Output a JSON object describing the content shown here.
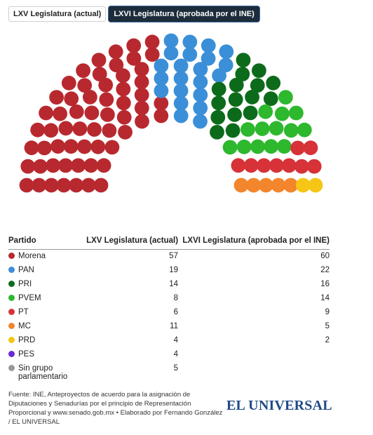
{
  "tabs": [
    {
      "label": "LXV Legislatura (actual)",
      "active": false
    },
    {
      "label": "LXVI Legislatura (aprobada por el INE)",
      "active": true
    }
  ],
  "table": {
    "header_party": "Partido",
    "header_current": "LXV Legislatura (actual)",
    "header_approved": "LXVI Legislatura (aprobada por el INE)"
  },
  "chart_data": {
    "type": "parliament",
    "title": "",
    "series_shown": "LXVI Legislatura (aprobada por el INE)",
    "parties": [
      {
        "name": "Morena",
        "color": "#b8292f",
        "current": "57",
        "approved": "60"
      },
      {
        "name": "PAN",
        "color": "#3b8fd8",
        "current": "19",
        "approved": "22"
      },
      {
        "name": "PRI",
        "color": "#0c6b1b",
        "current": "14",
        "approved": "16"
      },
      {
        "name": "PVEM",
        "color": "#2db82d",
        "current": "8",
        "approved": "14"
      },
      {
        "name": "PT",
        "color": "#d63238",
        "current": "6",
        "approved": "9"
      },
      {
        "name": "MC",
        "color": "#f3852c",
        "current": "11",
        "approved": "5"
      },
      {
        "name": "PRD",
        "color": "#f6c515",
        "current": "4",
        "approved": "2"
      },
      {
        "name": "PES",
        "color": "#6a2ad6",
        "current": "4",
        "approved": ""
      },
      {
        "name": "Sin grupo parlamentario",
        "color": "#999999",
        "current": "5",
        "approved": ""
      }
    ]
  },
  "source": "Fuente: INE, Anteproyectos de acuerdo para la asignación de Diputaciones y Senadurías por el principio de Representación Proporcional y www.senado.gob.mx • Elaborado por Fernando González / EL UNIVERSAL",
  "logo": "EL UNIVERSAL"
}
